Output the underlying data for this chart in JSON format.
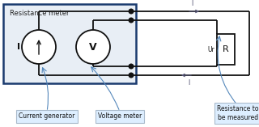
{
  "white": "#ffffff",
  "black": "#111111",
  "blue_dark": "#1a3a6e",
  "blue_arrow": "#5588bb",
  "box_fill": "#e8eef5",
  "label_box_fill": "#ddeeff",
  "label_box_edge": "#aabbcc",
  "wire_color": "#111111",
  "title": "Resistance meter",
  "label_current": "Current generator",
  "label_voltage": "Voltage meter",
  "label_resistance": "Resistance to\nbe measured",
  "sym_I": "I",
  "sym_V": "V",
  "sym_R": "R",
  "sym_Ur": "Ur",
  "fig_w": 3.2,
  "fig_h": 1.57,
  "dpi": 100
}
